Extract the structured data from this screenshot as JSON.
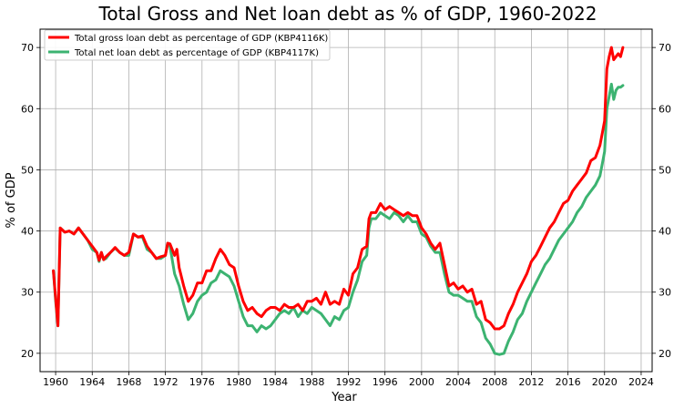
{
  "chart_data": {
    "type": "line",
    "title": "Total Gross and Net loan debt as % of GDP, 1960-2022",
    "xlabel": "Year",
    "ylabel": "% of GDP",
    "xlim": [
      1958.3,
      2025.2
    ],
    "ylim": [
      17,
      73
    ],
    "x_ticks": [
      1960,
      1964,
      1968,
      1972,
      1976,
      1980,
      1984,
      1988,
      1992,
      1996,
      2000,
      2004,
      2008,
      2012,
      2016,
      2020,
      2024
    ],
    "y_ticks": [
      20,
      30,
      40,
      50,
      60,
      70
    ],
    "grid": true,
    "legend_position": "upper-left",
    "right_axis_mirror": true,
    "series": [
      {
        "name": "Total gross loan debt as percentage of GDP (KBP4116K)",
        "color": "#ff0000",
        "points": [
          [
            1959.75,
            33.5
          ],
          [
            1960.0,
            29.0
          ],
          [
            1960.25,
            24.5
          ],
          [
            1960.5,
            40.5
          ],
          [
            1961.0,
            39.8
          ],
          [
            1961.5,
            40.0
          ],
          [
            1962.0,
            39.5
          ],
          [
            1962.5,
            40.5
          ],
          [
            1963.0,
            39.5
          ],
          [
            1963.5,
            38.5
          ],
          [
            1964.0,
            37.5
          ],
          [
            1964.5,
            36.5
          ],
          [
            1964.75,
            35.2
          ],
          [
            1965.0,
            36.5
          ],
          [
            1965.25,
            35.3
          ],
          [
            1965.5,
            35.8
          ],
          [
            1966.0,
            36.5
          ],
          [
            1966.5,
            37.3
          ],
          [
            1967.0,
            36.5
          ],
          [
            1967.5,
            36.0
          ],
          [
            1968.0,
            36.5
          ],
          [
            1968.5,
            39.5
          ],
          [
            1969.0,
            39.0
          ],
          [
            1969.5,
            39.2
          ],
          [
            1970.0,
            37.5
          ],
          [
            1970.5,
            36.5
          ],
          [
            1971.0,
            35.5
          ],
          [
            1971.5,
            35.8
          ],
          [
            1972.0,
            36.0
          ],
          [
            1972.25,
            38.0
          ],
          [
            1972.5,
            37.9
          ],
          [
            1973.0,
            36.0
          ],
          [
            1973.25,
            37.0
          ],
          [
            1973.5,
            34.0
          ],
          [
            1974.0,
            31.0
          ],
          [
            1974.5,
            28.5
          ],
          [
            1975.0,
            29.5
          ],
          [
            1975.5,
            31.5
          ],
          [
            1976.0,
            31.5
          ],
          [
            1976.5,
            33.5
          ],
          [
            1977.0,
            33.5
          ],
          [
            1977.5,
            35.5
          ],
          [
            1978.0,
            37.0
          ],
          [
            1978.5,
            36.0
          ],
          [
            1979.0,
            34.5
          ],
          [
            1979.5,
            34.0
          ],
          [
            1980.0,
            31.0
          ],
          [
            1980.5,
            28.5
          ],
          [
            1981.0,
            27.0
          ],
          [
            1981.5,
            27.5
          ],
          [
            1982.0,
            26.5
          ],
          [
            1982.5,
            26.0
          ],
          [
            1983.0,
            27.0
          ],
          [
            1983.5,
            27.5
          ],
          [
            1984.0,
            27.5
          ],
          [
            1984.5,
            27.0
          ],
          [
            1985.0,
            28.0
          ],
          [
            1985.5,
            27.5
          ],
          [
            1986.0,
            27.5
          ],
          [
            1986.5,
            28.0
          ],
          [
            1987.0,
            27.0
          ],
          [
            1987.5,
            28.5
          ],
          [
            1988.0,
            28.5
          ],
          [
            1988.5,
            29.0
          ],
          [
            1989.0,
            28.0
          ],
          [
            1989.5,
            30.0
          ],
          [
            1990.0,
            28.0
          ],
          [
            1990.5,
            28.5
          ],
          [
            1991.0,
            28.0
          ],
          [
            1991.5,
            30.5
          ],
          [
            1992.0,
            29.5
          ],
          [
            1992.5,
            33.0
          ],
          [
            1993.0,
            34.0
          ],
          [
            1993.5,
            37.0
          ],
          [
            1994.0,
            37.5
          ],
          [
            1994.25,
            42.0
          ],
          [
            1994.5,
            43.0
          ],
          [
            1995.0,
            43.0
          ],
          [
            1995.5,
            44.5
          ],
          [
            1996.0,
            43.5
          ],
          [
            1996.5,
            44.0
          ],
          [
            1997.0,
            43.5
          ],
          [
            1997.5,
            43.0
          ],
          [
            1998.0,
            42.5
          ],
          [
            1998.5,
            43.0
          ],
          [
            1999.0,
            42.5
          ],
          [
            1999.5,
            42.5
          ],
          [
            2000.0,
            40.5
          ],
          [
            2000.5,
            39.5
          ],
          [
            2001.0,
            38.0
          ],
          [
            2001.5,
            37.0
          ],
          [
            2002.0,
            38.0
          ],
          [
            2002.5,
            34.5
          ],
          [
            2003.0,
            31.0
          ],
          [
            2003.5,
            31.5
          ],
          [
            2004.0,
            30.5
          ],
          [
            2004.5,
            31.0
          ],
          [
            2005.0,
            30.0
          ],
          [
            2005.5,
            30.5
          ],
          [
            2006.0,
            28.0
          ],
          [
            2006.5,
            28.5
          ],
          [
            2007.0,
            25.5
          ],
          [
            2007.5,
            25.0
          ],
          [
            2008.0,
            24.0
          ],
          [
            2008.5,
            24.0
          ],
          [
            2009.0,
            24.5
          ],
          [
            2009.5,
            26.5
          ],
          [
            2010.0,
            28.0
          ],
          [
            2010.5,
            30.0
          ],
          [
            2011.0,
            31.5
          ],
          [
            2011.5,
            33.0
          ],
          [
            2012.0,
            35.0
          ],
          [
            2012.5,
            36.0
          ],
          [
            2013.0,
            37.5
          ],
          [
            2013.5,
            39.0
          ],
          [
            2014.0,
            40.5
          ],
          [
            2014.5,
            41.5
          ],
          [
            2015.0,
            43.0
          ],
          [
            2015.5,
            44.5
          ],
          [
            2016.0,
            45.0
          ],
          [
            2016.5,
            46.5
          ],
          [
            2017.0,
            47.5
          ],
          [
            2017.5,
            48.5
          ],
          [
            2018.0,
            49.5
          ],
          [
            2018.5,
            51.5
          ],
          [
            2019.0,
            52.0
          ],
          [
            2019.5,
            54.0
          ],
          [
            2019.75,
            56.0
          ],
          [
            2020.0,
            58.0
          ],
          [
            2020.25,
            66.5
          ],
          [
            2020.5,
            68.5
          ],
          [
            2020.75,
            70.0
          ],
          [
            2021.0,
            68.0
          ],
          [
            2021.25,
            68.5
          ],
          [
            2021.5,
            69.0
          ],
          [
            2021.75,
            68.5
          ],
          [
            2022.0,
            70.0
          ]
        ]
      },
      {
        "name": "Total net loan debt as percentage of GDP (KBP4117K)",
        "color": "#3cb371",
        "points": [
          [
            1959.75,
            33.5
          ],
          [
            1960.0,
            28.5
          ],
          [
            1960.25,
            24.5
          ],
          [
            1960.5,
            40.5
          ],
          [
            1961.0,
            39.8
          ],
          [
            1961.5,
            40.0
          ],
          [
            1962.0,
            39.5
          ],
          [
            1962.5,
            40.5
          ],
          [
            1963.0,
            39.5
          ],
          [
            1963.5,
            38.5
          ],
          [
            1964.0,
            37.0
          ],
          [
            1964.5,
            36.5
          ],
          [
            1964.75,
            35.0
          ],
          [
            1965.0,
            36.5
          ],
          [
            1965.25,
            35.3
          ],
          [
            1965.5,
            35.5
          ],
          [
            1966.0,
            36.5
          ],
          [
            1966.5,
            37.2
          ],
          [
            1967.0,
            36.5
          ],
          [
            1967.5,
            36.0
          ],
          [
            1968.0,
            36.0
          ],
          [
            1968.5,
            39.5
          ],
          [
            1969.0,
            39.0
          ],
          [
            1969.5,
            39.0
          ],
          [
            1970.0,
            37.0
          ],
          [
            1970.5,
            36.5
          ],
          [
            1971.0,
            35.5
          ],
          [
            1971.5,
            35.5
          ],
          [
            1972.0,
            36.0
          ],
          [
            1972.25,
            38.0
          ],
          [
            1972.5,
            37.5
          ],
          [
            1973.0,
            33.0
          ],
          [
            1973.5,
            31.0
          ],
          [
            1974.0,
            28.0
          ],
          [
            1974.5,
            25.5
          ],
          [
            1975.0,
            26.5
          ],
          [
            1975.5,
            28.5
          ],
          [
            1976.0,
            29.5
          ],
          [
            1976.5,
            30.0
          ],
          [
            1977.0,
            31.5
          ],
          [
            1977.5,
            32.0
          ],
          [
            1978.0,
            33.5
          ],
          [
            1978.5,
            33.0
          ],
          [
            1979.0,
            32.5
          ],
          [
            1979.5,
            31.0
          ],
          [
            1980.0,
            28.5
          ],
          [
            1980.5,
            26.0
          ],
          [
            1981.0,
            24.5
          ],
          [
            1981.5,
            24.5
          ],
          [
            1982.0,
            23.5
          ],
          [
            1982.5,
            24.5
          ],
          [
            1983.0,
            24.0
          ],
          [
            1983.5,
            24.5
          ],
          [
            1984.0,
            25.5
          ],
          [
            1984.5,
            26.5
          ],
          [
            1985.0,
            27.0
          ],
          [
            1985.5,
            26.5
          ],
          [
            1986.0,
            27.5
          ],
          [
            1986.5,
            26.0
          ],
          [
            1987.0,
            27.0
          ],
          [
            1987.5,
            26.5
          ],
          [
            1988.0,
            27.5
          ],
          [
            1988.5,
            27.0
          ],
          [
            1989.0,
            26.5
          ],
          [
            1989.5,
            25.5
          ],
          [
            1990.0,
            24.5
          ],
          [
            1990.5,
            26.0
          ],
          [
            1991.0,
            25.5
          ],
          [
            1991.5,
            27.0
          ],
          [
            1992.0,
            27.5
          ],
          [
            1992.5,
            30.0
          ],
          [
            1993.0,
            32.0
          ],
          [
            1993.5,
            35.0
          ],
          [
            1994.0,
            36.0
          ],
          [
            1994.25,
            40.5
          ],
          [
            1994.5,
            42.0
          ],
          [
            1995.0,
            42.0
          ],
          [
            1995.5,
            43.0
          ],
          [
            1996.0,
            42.5
          ],
          [
            1996.5,
            42.0
          ],
          [
            1997.0,
            43.0
          ],
          [
            1997.5,
            42.5
          ],
          [
            1998.0,
            41.5
          ],
          [
            1998.5,
            42.5
          ],
          [
            1999.0,
            41.5
          ],
          [
            1999.5,
            41.5
          ],
          [
            2000.0,
            39.5
          ],
          [
            2000.5,
            39.0
          ],
          [
            2001.0,
            37.5
          ],
          [
            2001.5,
            36.5
          ],
          [
            2002.0,
            36.5
          ],
          [
            2002.5,
            33.0
          ],
          [
            2003.0,
            30.0
          ],
          [
            2003.5,
            29.5
          ],
          [
            2004.0,
            29.5
          ],
          [
            2004.5,
            29.0
          ],
          [
            2005.0,
            28.5
          ],
          [
            2005.5,
            28.5
          ],
          [
            2006.0,
            26.0
          ],
          [
            2006.5,
            25.0
          ],
          [
            2007.0,
            22.5
          ],
          [
            2007.5,
            21.5
          ],
          [
            2008.0,
            20.0
          ],
          [
            2008.5,
            19.8
          ],
          [
            2009.0,
            20.0
          ],
          [
            2009.5,
            22.0
          ],
          [
            2010.0,
            23.5
          ],
          [
            2010.5,
            25.5
          ],
          [
            2011.0,
            26.5
          ],
          [
            2011.5,
            28.5
          ],
          [
            2012.0,
            30.0
          ],
          [
            2012.5,
            31.5
          ],
          [
            2013.0,
            33.0
          ],
          [
            2013.5,
            34.5
          ],
          [
            2014.0,
            35.5
          ],
          [
            2014.5,
            37.0
          ],
          [
            2015.0,
            38.5
          ],
          [
            2015.5,
            39.5
          ],
          [
            2016.0,
            40.5
          ],
          [
            2016.5,
            41.5
          ],
          [
            2017.0,
            43.0
          ],
          [
            2017.5,
            44.0
          ],
          [
            2018.0,
            45.5
          ],
          [
            2018.5,
            46.5
          ],
          [
            2019.0,
            47.5
          ],
          [
            2019.5,
            49.0
          ],
          [
            2019.75,
            51.0
          ],
          [
            2020.0,
            53.0
          ],
          [
            2020.25,
            60.0
          ],
          [
            2020.5,
            62.0
          ],
          [
            2020.75,
            64.0
          ],
          [
            2021.0,
            61.5
          ],
          [
            2021.25,
            63.0
          ],
          [
            2021.5,
            63.5
          ],
          [
            2021.75,
            63.5
          ],
          [
            2022.0,
            63.8
          ]
        ]
      }
    ]
  }
}
